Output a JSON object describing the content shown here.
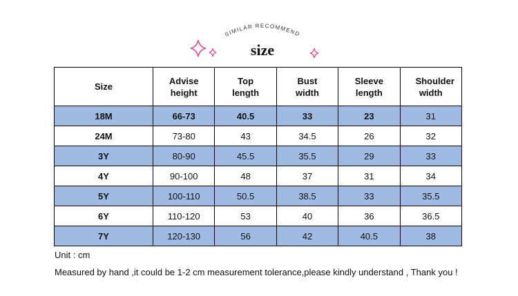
{
  "header": {
    "arc_text": "SIMILAR RECOMMEND",
    "title": "size"
  },
  "table": {
    "columns": [
      "Size",
      "Advise height",
      "Top length",
      "Bust width",
      "Sleeve length",
      "Shoulder width"
    ],
    "rows": [
      [
        "18M",
        "66-73",
        "40.5",
        "33",
        "23",
        "31"
      ],
      [
        "24M",
        "73-80",
        "43",
        "34.5",
        "26",
        "32"
      ],
      [
        "3Y",
        "80-90",
        "45.5",
        "35.5",
        "29",
        "33"
      ],
      [
        "4Y",
        "90-100",
        "48",
        "37",
        "31",
        "34"
      ],
      [
        "5Y",
        "100-110",
        "50.5",
        "38.5",
        "33",
        "35.5"
      ],
      [
        "6Y",
        "110-120",
        "53",
        "40",
        "36",
        "36.5"
      ],
      [
        "7Y",
        "120-130",
        "56",
        "42",
        "40.5",
        "38"
      ]
    ]
  },
  "notes": [
    "Unit : cm",
    "Measured by hand ,it could be 1-2 cm measurement tolerance,please kindly understand , Thank you !"
  ]
}
